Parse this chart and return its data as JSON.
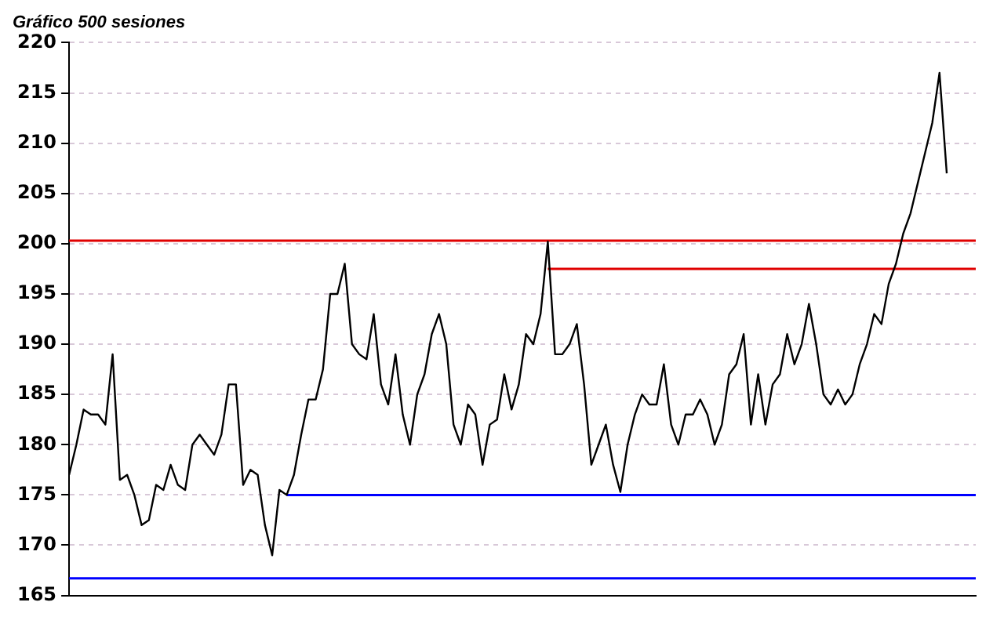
{
  "chart_data": {
    "type": "line",
    "title": "Gráfico 500 sesiones",
    "tick_labels": "y",
    "grid": "y",
    "legend": false,
    "marker": "none",
    "line_style": "solid",
    "categories": [
      null,
      null,
      null,
      null,
      null,
      null,
      null,
      null,
      null,
      null,
      null,
      null,
      null,
      null,
      null,
      null,
      null,
      null,
      null,
      null,
      null,
      null,
      null,
      null,
      null,
      null,
      null,
      null,
      null,
      null,
      null,
      null,
      null,
      null,
      null,
      null,
      null,
      null,
      null,
      null,
      null,
      null,
      null,
      null,
      null,
      null,
      null,
      null,
      null,
      null,
      null,
      null,
      null,
      null,
      null,
      null,
      null,
      null,
      null,
      null,
      null,
      null,
      null,
      null,
      null,
      null,
      null,
      null,
      null,
      null,
      null,
      null,
      null,
      null,
      null,
      null,
      null,
      null,
      null,
      null,
      null,
      null,
      null,
      null,
      null,
      null,
      null,
      null,
      null,
      null,
      null,
      null,
      null,
      null,
      null,
      null,
      null,
      null,
      null,
      null,
      null,
      null,
      null,
      null,
      null,
      null,
      null,
      null,
      null,
      null,
      null,
      null,
      null,
      null,
      null,
      null,
      null,
      null,
      null,
      null,
      null,
      null,
      null,
      null,
      null,
      null
    ],
    "ylim": [
      165,
      220
    ],
    "yticks": [
      165,
      170,
      175,
      180,
      185,
      190,
      195,
      200,
      205,
      210,
      215,
      220
    ],
    "series": [
      {
        "color": "#000000",
        "values": [
          177,
          180,
          183.5,
          183,
          183,
          182,
          189,
          176.5,
          177,
          175,
          172,
          172.5,
          176,
          175.5,
          178,
          176,
          175.5,
          180,
          181,
          180,
          179,
          181,
          186,
          186,
          176,
          177.5,
          177,
          172,
          169,
          175.5,
          175,
          177,
          181,
          184.5,
          184.5,
          187.5,
          195,
          195,
          198,
          190,
          189,
          188.5,
          193,
          186,
          184,
          189,
          183,
          180,
          185,
          187,
          191,
          193,
          190,
          182,
          180,
          184,
          183,
          178,
          182,
          182.5,
          187,
          183.5,
          186,
          191,
          190,
          193,
          200.2,
          189,
          189,
          190,
          192,
          186,
          178,
          180,
          182,
          178,
          175.3,
          180,
          183,
          185,
          184,
          184,
          188,
          182,
          180,
          183,
          183,
          184.5,
          183,
          180,
          182,
          187,
          188,
          191,
          182,
          187,
          182,
          186,
          187,
          191,
          188,
          190,
          194,
          190,
          185,
          184,
          185.5,
          184,
          185,
          188,
          190,
          193,
          192,
          196,
          198,
          201,
          203,
          206,
          209,
          212,
          217,
          207,
          null,
          null,
          null,
          null
        ]
      },
      {
        "color": "#e00000",
        "values": [
          null,
          null,
          null,
          null,
          null,
          null,
          null,
          null,
          null,
          null,
          null,
          null,
          null,
          null,
          null,
          null,
          null,
          null,
          null,
          null,
          null,
          null,
          null,
          null,
          null,
          null,
          null,
          null,
          null,
          null,
          null,
          null,
          null,
          null,
          null,
          null,
          null,
          null,
          null,
          null,
          null,
          null,
          null,
          null,
          null,
          null,
          null,
          null,
          null,
          null,
          null,
          null,
          null,
          null,
          null,
          null,
          null,
          null,
          null,
          null,
          null,
          null,
          null,
          null,
          null,
          null,
          197.5,
          197.5,
          197.5,
          197.5,
          197.5,
          197.5,
          197.5,
          197.5,
          197.5,
          197.5,
          197.5,
          197.5,
          197.5,
          197.5,
          197.5,
          197.5,
          197.5,
          197.5,
          197.5,
          197.5,
          197.5,
          197.5,
          197.5,
          197.5,
          197.5,
          197.5,
          197.5,
          197.5,
          197.5,
          197.5,
          197.5,
          197.5,
          197.5,
          197.5,
          197.5,
          197.5,
          197.5,
          197.5,
          197.5,
          197.5,
          197.5,
          197.5,
          197.5,
          197.5,
          197.5,
          197.5,
          197.5,
          197.5,
          197.5,
          197.5,
          197.5,
          197.5,
          197.5,
          197.5,
          197.5,
          197.5,
          197.5,
          197.5,
          197.5,
          197.5
        ]
      },
      {
        "color": "#0000ff",
        "values": [
          null,
          null,
          null,
          null,
          null,
          null,
          null,
          null,
          null,
          null,
          null,
          null,
          null,
          null,
          null,
          null,
          null,
          null,
          null,
          null,
          null,
          null,
          null,
          null,
          null,
          null,
          null,
          null,
          null,
          null,
          175,
          175,
          175,
          175,
          175,
          175,
          175,
          175,
          175,
          175,
          175,
          175,
          175,
          175,
          175,
          175,
          175,
          175,
          175,
          175,
          175,
          175,
          175,
          175,
          175,
          175,
          175,
          175,
          175,
          175,
          175,
          175,
          175,
          175,
          175,
          175,
          175,
          175,
          175,
          175,
          175,
          175,
          175,
          175,
          175,
          175,
          175,
          175,
          175,
          175,
          175,
          175,
          175,
          175,
          175,
          175,
          175,
          175,
          175,
          175,
          175,
          175,
          175,
          175,
          175,
          175,
          175,
          175,
          175,
          175,
          175,
          175,
          175,
          175,
          175,
          175,
          175,
          175,
          175,
          175,
          175,
          175,
          175,
          175,
          175,
          175,
          175,
          175,
          175,
          175,
          175,
          175,
          175,
          175,
          175,
          175
        ]
      }
    ],
    "ref_lines": [
      {
        "axis": "y",
        "value": 200.3,
        "color": "#e00000"
      },
      {
        "axis": "y",
        "value": 166.7,
        "color": "#0000ff"
      }
    ]
  }
}
